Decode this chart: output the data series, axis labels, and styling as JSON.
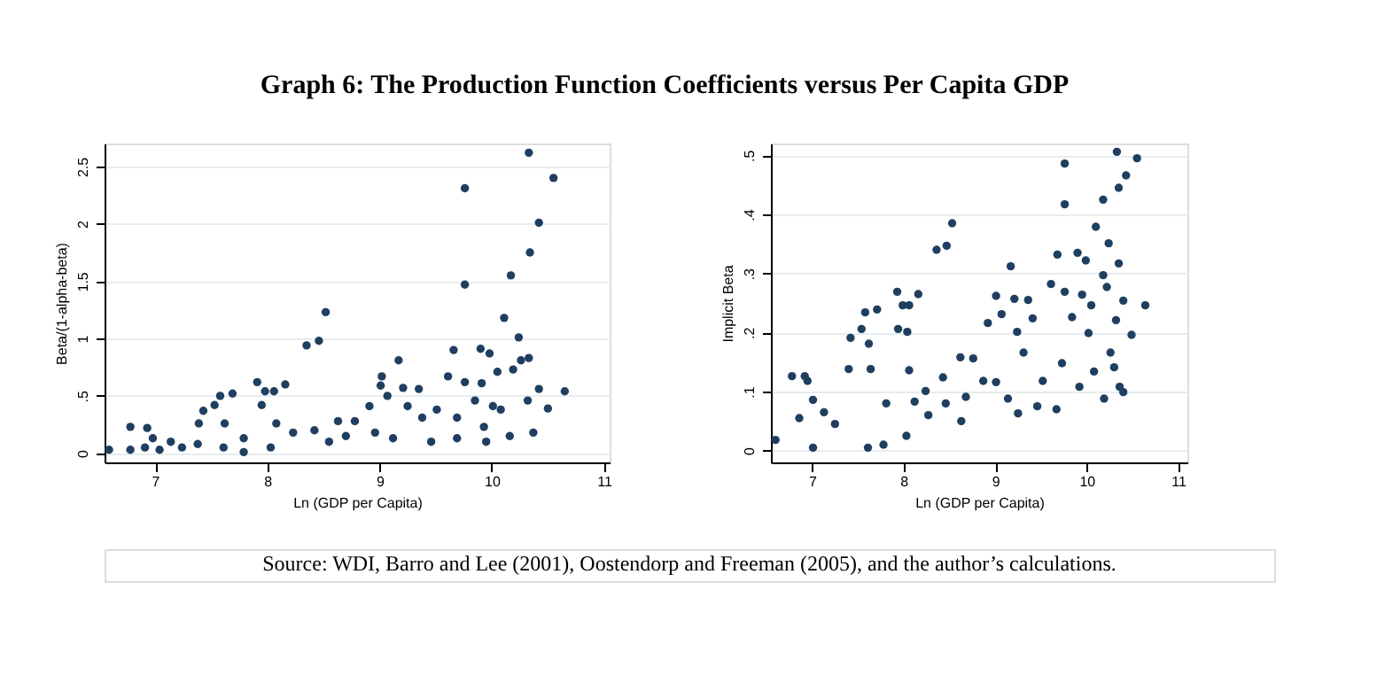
{
  "chart_data": [
    {
      "type": "scatter",
      "title": "Graph 6: The Production Function Coefficients versus Per Capita GDP",
      "xlabel": "Ln (GDP per Capita)",
      "ylabel": "Beta/(1-alpha-beta)",
      "marker": "circle",
      "grid": "y",
      "xlim": [
        6.55,
        11.05
      ],
      "xticks": [
        7,
        8,
        9,
        10,
        11
      ],
      "ylim": [
        -0.08,
        2.7
      ],
      "yticks": [
        0,
        {
          "value": 0.5,
          "label": ".5"
        },
        1,
        1.5,
        2,
        2.5
      ],
      "series": [
        {
          "color": "#1f3f60",
          "x": [
            6.59,
            6.78,
            6.78,
            6.91,
            6.93,
            6.98,
            7.04,
            7.14,
            7.24,
            7.38,
            7.39,
            7.43,
            7.53,
            7.58,
            7.61,
            7.62,
            7.69,
            7.79,
            7.79,
            7.91,
            7.95,
            7.98,
            8.03,
            8.06,
            8.08,
            8.16,
            8.23,
            8.35,
            8.46,
            8.52,
            8.42,
            8.55,
            8.63,
            8.7,
            8.78,
            8.91,
            9.02,
            9.01,
            9.07,
            8.96,
            9.17,
            9.21,
            9.12,
            9.25,
            9.35,
            9.38,
            9.46,
            9.51,
            9.61,
            9.66,
            9.76,
            9.76,
            9.76,
            9.69,
            9.85,
            9.9,
            9.91,
            9.93,
            9.98,
            10.01,
            10.05,
            10.11,
            10.08,
            10.17,
            10.19,
            10.24,
            10.26,
            10.33,
            10.34,
            10.33,
            10.32,
            10.42,
            10.42,
            10.55,
            10.5,
            10.65,
            10.37,
            10.16,
            9.95,
            9.69
          ],
          "values": [
            0.03,
            0.23,
            0.03,
            0.05,
            0.22,
            0.13,
            0.03,
            0.1,
            0.05,
            0.08,
            0.26,
            0.37,
            0.42,
            0.5,
            0.05,
            0.26,
            0.52,
            0.13,
            0.01,
            0.62,
            0.42,
            0.54,
            0.05,
            0.54,
            0.26,
            0.6,
            0.18,
            0.94,
            0.98,
            1.23,
            0.2,
            0.1,
            0.28,
            0.15,
            0.28,
            0.41,
            0.67,
            0.59,
            0.5,
            0.18,
            0.81,
            0.57,
            0.13,
            0.41,
            0.56,
            0.31,
            0.1,
            0.38,
            0.67,
            0.9,
            2.31,
            1.47,
            0.62,
            0.31,
            0.46,
            0.91,
            0.61,
            0.23,
            0.87,
            0.41,
            0.71,
            1.18,
            0.38,
            1.55,
            0.73,
            1.01,
            0.81,
            2.62,
            1.75,
            0.83,
            0.46,
            2.01,
            0.56,
            2.4,
            0.39,
            0.54,
            0.18,
            0.15,
            0.1,
            0.13
          ]
        }
      ],
      "annotations": [
        "Source: WDI, Barro and Lee (2001), Oostendorp and Freeman (2005), and the author’s calculations."
      ]
    },
    {
      "type": "scatter",
      "xlabel": "Ln (GDP per Capita)",
      "ylabel": "Implicit Beta",
      "marker": "circle",
      "grid": "y",
      "xlim": [
        6.55,
        11.1
      ],
      "xticks": [
        7,
        8,
        9,
        10,
        11
      ],
      "ylim": [
        -0.02,
        0.52
      ],
      "yticks": [
        0,
        {
          "value": 0.1,
          "label": ".1"
        },
        {
          "value": 0.2,
          "label": ".2"
        },
        {
          "value": 0.3,
          "label": ".3"
        },
        {
          "value": 0.4,
          "label": ".4"
        },
        {
          "value": 0.5,
          "label": ".5"
        }
      ],
      "series": [
        {
          "color": "#1f3f60",
          "x": [
            6.6,
            6.78,
            6.92,
            6.95,
            6.86,
            7.01,
            7.01,
            7.13,
            7.25,
            7.4,
            7.42,
            7.54,
            7.58,
            7.62,
            7.64,
            7.61,
            7.71,
            7.81,
            7.78,
            7.93,
            7.94,
            7.99,
            8.06,
            8.04,
            8.06,
            8.03,
            8.16,
            8.12,
            8.24,
            8.27,
            8.36,
            8.47,
            8.53,
            8.43,
            8.46,
            8.62,
            8.63,
            8.68,
            8.76,
            8.87,
            8.92,
            9.01,
            9.01,
            9.07,
            9.14,
            9.17,
            9.21,
            9.24,
            9.25,
            9.31,
            9.36,
            9.41,
            9.46,
            9.52,
            9.61,
            9.67,
            9.68,
            9.76,
            9.76,
            9.76,
            9.73,
            9.84,
            9.9,
            9.92,
            9.95,
            9.99,
            10.02,
            10.05,
            10.1,
            10.08,
            10.18,
            10.18,
            10.19,
            10.22,
            10.24,
            10.26,
            10.33,
            10.35,
            10.35,
            10.32,
            10.36,
            10.4,
            10.43,
            10.4,
            10.49,
            10.55,
            10.64,
            10.3
          ],
          "values": [
            0.018,
            0.126,
            0.126,
            0.118,
            0.055,
            0.086,
            0.005,
            0.065,
            0.045,
            0.138,
            0.191,
            0.206,
            0.234,
            0.181,
            0.138,
            0.005,
            0.239,
            0.08,
            0.01,
            0.269,
            0.206,
            0.246,
            0.246,
            0.201,
            0.136,
            0.025,
            0.265,
            0.083,
            0.101,
            0.06,
            0.34,
            0.347,
            0.385,
            0.124,
            0.08,
            0.158,
            0.05,
            0.091,
            0.156,
            0.118,
            0.216,
            0.262,
            0.116,
            0.231,
            0.088,
            0.312,
            0.257,
            0.201,
            0.063,
            0.166,
            0.255,
            0.224,
            0.075,
            0.118,
            0.282,
            0.07,
            0.332,
            0.486,
            0.417,
            0.269,
            0.148,
            0.226,
            0.335,
            0.108,
            0.264,
            0.322,
            0.199,
            0.246,
            0.379,
            0.134,
            0.425,
            0.297,
            0.088,
            0.277,
            0.351,
            0.166,
            0.506,
            0.445,
            0.317,
            0.221,
            0.108,
            0.099,
            0.466,
            0.254,
            0.196,
            0.495,
            0.246,
            0.141
          ]
        }
      ]
    }
  ]
}
